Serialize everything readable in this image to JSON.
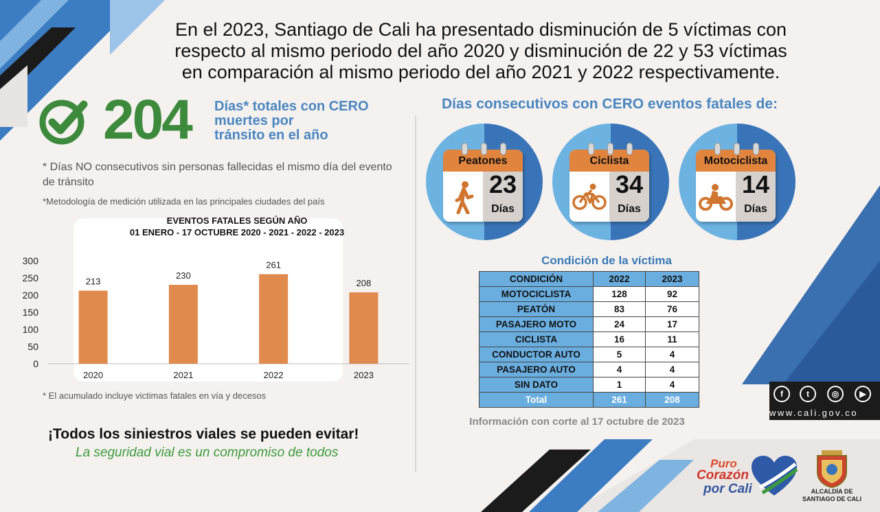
{
  "headline": {
    "line1": "En el 2023, Santiago de Cali ha presentado disminución de 5 víctimas con",
    "line2": "respecto al  mismo periodo del año 2020 y disminución de 22 y 53 víctimas",
    "line3": "en comparación al mismo periodo del año 2021 y 2022 respectivamente."
  },
  "summary": {
    "total_days": "204",
    "label_line1": "Días* totales con CERO",
    "label_line2": "muertes por",
    "label_line3": "tránsito en el año",
    "note_nonconsecutive": "* Días NO consecutivos sin personas fallecidas el mismo día del evento de tránsito",
    "note_methodology": "*Metodología de medición utilizada en las principales ciudades del país"
  },
  "chart_data": {
    "type": "bar",
    "title": "EVENTOS FATALES SEGÚN AÑO",
    "subtitle": "01  ENERO - 17 OCTUBRE 2020 - 2021 - 2022 - 2023",
    "categories": [
      "2020",
      "2021",
      "2022",
      "2023"
    ],
    "values": [
      213,
      230,
      261,
      208
    ],
    "data_labels": [
      "213",
      "230",
      "261",
      "208"
    ],
    "ylim": [
      0,
      300
    ],
    "yticks": [
      "0",
      "50",
      "100",
      "150",
      "200",
      "250",
      "300"
    ],
    "xlabel": "",
    "ylabel": "",
    "bar_color": "#e08a4e",
    "footnote": "* El acumulado incluye victimas fatales en vía y decesos"
  },
  "slogan": {
    "main": "¡Todos los siniestros viales se pueden evitar!",
    "sub": "La seguridad vial es un compromiso de todos"
  },
  "consecutive": {
    "title": "Días consecutivos con CERO eventos fatales de:",
    "items": [
      {
        "label": "Peatones",
        "days": "23",
        "unit": "Días",
        "icon": "pedestrian-icon"
      },
      {
        "label": "Ciclista",
        "days": "34",
        "unit": "Días",
        "icon": "bicycle-icon"
      },
      {
        "label": "Motociclista",
        "days": "14",
        "unit": "Días",
        "icon": "motorcycle-icon"
      }
    ]
  },
  "victims": {
    "title": "Condición de la víctima",
    "headers": [
      "CONDICIÓN",
      "2022",
      "2023"
    ],
    "rows": [
      [
        "MOTOCICLISTA",
        "128",
        "92"
      ],
      [
        "PEATÓN",
        "83",
        "76"
      ],
      [
        "PASAJERO MOTO",
        "24",
        "17"
      ],
      [
        "CICLISTA",
        "16",
        "11"
      ],
      [
        "CONDUCTOR AUTO",
        "5",
        "4"
      ],
      [
        "PASAJERO AUTO",
        "4",
        "4"
      ],
      [
        "SIN DATO",
        "1",
        "4"
      ]
    ],
    "total": [
      "Total",
      "261",
      "208"
    ],
    "cutoff_note": "Información con corte al 17 octubre de 2023"
  },
  "social": {
    "icons": [
      "facebook-icon",
      "twitter-icon",
      "instagram-icon",
      "youtube-icon"
    ],
    "website": "www.cali.gov.co"
  },
  "logos": {
    "puro_line1": "Puro",
    "puro_line2": "Corazón",
    "puro_line3": "por Cali",
    "alcaldia_line1": "ALCALDÍA DE",
    "alcaldia_line2": "SANTIAGO DE CALI"
  },
  "colors": {
    "accent_blue": "#4a86c0",
    "green": "#3d8a3d",
    "orange": "#e08a4e",
    "table_blue": "#6aaee0"
  }
}
